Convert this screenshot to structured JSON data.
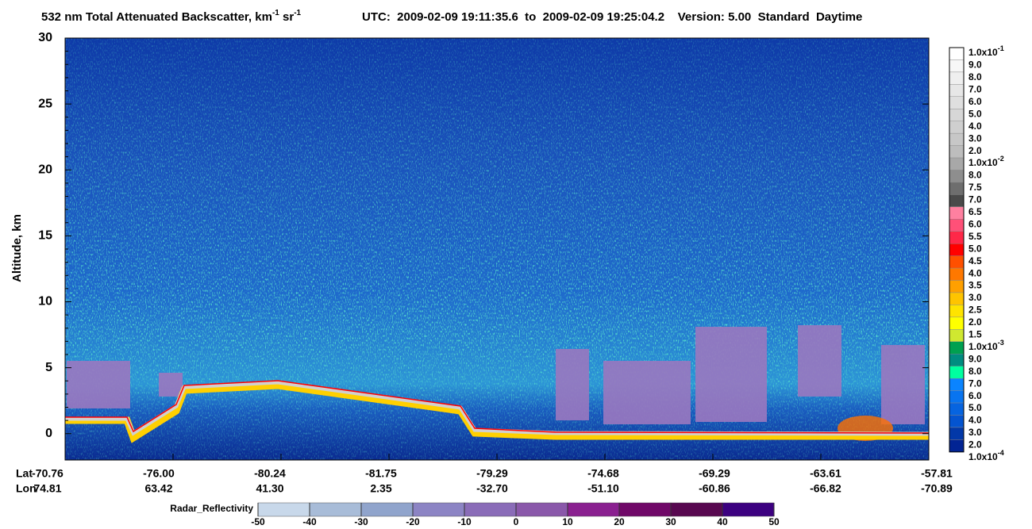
{
  "chart_data": {
    "type": "curtain",
    "title": [
      "532 nm Total Attenuated Backscatter, km",
      "-1",
      " sr",
      "-1"
    ],
    "subtitle": "UTC:  2009-02-09 19:11:35.6  to  2009-02-09 19:25:04.2    Version: 5.00  Standard  Daytime",
    "ylabel": "Altitude, km",
    "ylim": [
      -2,
      30
    ],
    "yticks": [
      0,
      5,
      10,
      15,
      20,
      25,
      30
    ],
    "x_rows": [
      {
        "name": "Lat",
        "labels": [
          "-70.76",
          "-76.00",
          "-80.24",
          "-81.75",
          "-79.29",
          "-74.68",
          "-69.29",
          "-63.61",
          "-57.81"
        ]
      },
      {
        "name": "Lon",
        "labels": [
          "74.81",
          "63.42",
          "41.30",
          "2.35",
          "-32.70",
          "-51.10",
          "-60.86",
          "-66.82",
          "-70.89"
        ]
      }
    ],
    "colorbar": {
      "labels": [
        {
          "mantissa": "1.0x10",
          "exponent": "-1"
        },
        "9.0",
        "8.0",
        "7.0",
        "6.0",
        "5.0",
        "4.0",
        "3.0",
        "2.0",
        {
          "mantissa": "1.0x10",
          "exponent": "-2"
        },
        "8.0",
        "7.5",
        "7.0",
        "6.5",
        "6.0",
        "5.5",
        "5.0",
        "4.5",
        "4.0",
        "3.5",
        "3.0",
        "2.5",
        "2.0",
        "1.5",
        {
          "mantissa": "1.0x10",
          "exponent": "-3"
        },
        "9.0",
        "8.0",
        "7.0",
        "6.0",
        "5.0",
        "4.0",
        "3.0",
        "2.0",
        {
          "mantissa": "1.0x10",
          "exponent": "-4"
        }
      ],
      "colors": [
        "#ffffff",
        "#f7f7f7",
        "#efefef",
        "#e7e7e7",
        "#dfdfdf",
        "#d7d7d7",
        "#cfcfcf",
        "#c7c7c7",
        "#bdbdbd",
        "#a8a8a8",
        "#8e8e8e",
        "#6e6e6e",
        "#4a4a4a",
        "#ff80a0",
        "#ff5078",
        "#ff2848",
        "#ff0000",
        "#ff5000",
        "#ff7800",
        "#ffa000",
        "#ffc400",
        "#ffe400",
        "#ffff00",
        "#d0e830",
        "#00a050",
        "#008c80",
        "#00ffa0",
        "#0a84ff",
        "#0874f0",
        "#0664e0",
        "#0454d0",
        "#0238a8",
        "#022494"
      ]
    },
    "radar": {
      "name": "Radar_Reflectivity",
      "ticks": [
        -50,
        -40,
        -30,
        -20,
        -10,
        0,
        10,
        20,
        30,
        40,
        50
      ],
      "colors": [
        "#c8d8ea",
        "#a8bcd8",
        "#90a4cc",
        "#8c84c4",
        "#8a6cb8",
        "#8a58aa",
        "#8a2090",
        "#700868",
        "#580850",
        "#3c0080"
      ]
    }
  }
}
